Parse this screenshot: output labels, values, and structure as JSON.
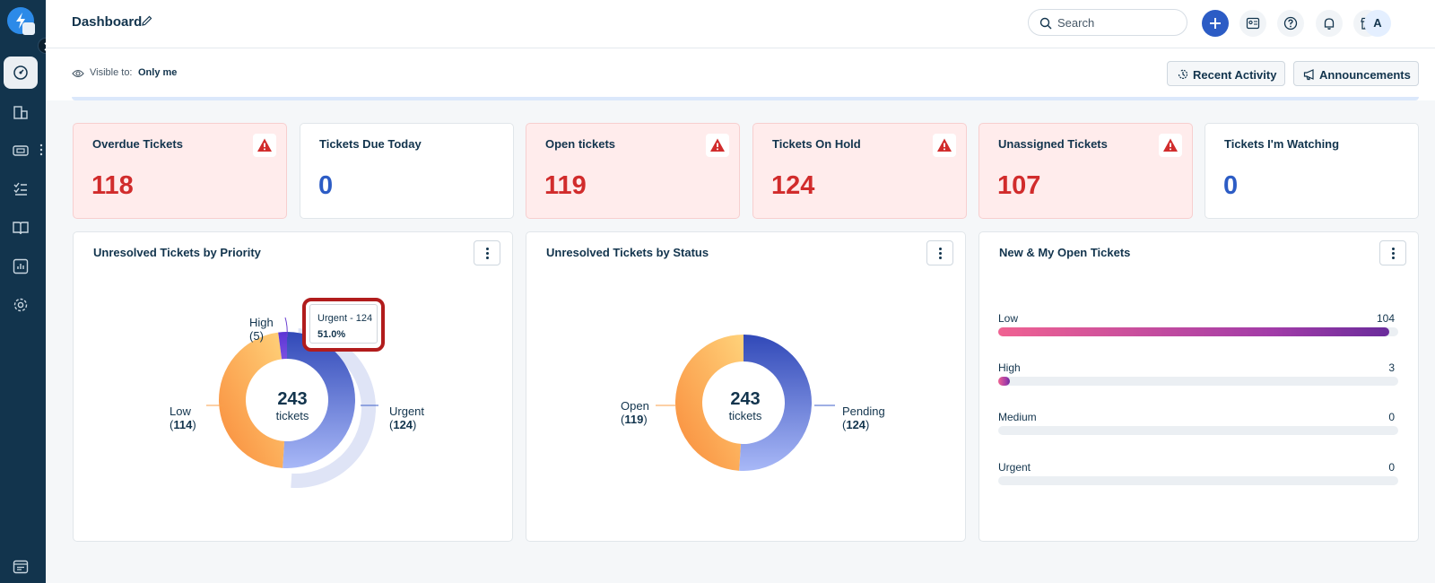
{
  "header": {
    "title": "Dashboard",
    "search_placeholder": "Search",
    "avatar_initial": "A"
  },
  "subbar": {
    "visible_label": "Visible to:",
    "visible_value": "Only me",
    "recent_activity": "Recent Activity",
    "announcements": "Announcements"
  },
  "stats": [
    {
      "label": "Overdue Tickets",
      "value": "118",
      "alert": true
    },
    {
      "label": "Tickets Due Today",
      "value": "0",
      "alert": false
    },
    {
      "label": "Open tickets",
      "value": "119",
      "alert": true
    },
    {
      "label": "Tickets On Hold",
      "value": "124",
      "alert": true
    },
    {
      "label": "Unassigned Tickets",
      "value": "107",
      "alert": true
    },
    {
      "label": "Tickets I'm Watching",
      "value": "0",
      "alert": false
    }
  ],
  "priority_chart": {
    "title": "Unresolved Tickets by Priority",
    "center_value": "243",
    "center_label": "tickets",
    "labels": {
      "high": "High",
      "high_count": "5",
      "low": "Low",
      "low_count": "114",
      "urgent": "Urgent",
      "urgent_count": "124"
    },
    "tooltip_line1": "Urgent - 124",
    "tooltip_line2": "51.0%"
  },
  "status_chart": {
    "title": "Unresolved Tickets by Status",
    "center_value": "243",
    "center_label": "tickets",
    "labels": {
      "open": "Open",
      "open_count": "119",
      "pending": "Pending",
      "pending_count": "124"
    }
  },
  "open_tickets": {
    "title": "New & My Open Tickets",
    "rows": [
      {
        "label": "Low",
        "count": "104"
      },
      {
        "label": "High",
        "count": "3"
      },
      {
        "label": "Medium",
        "count": "0"
      },
      {
        "label": "Urgent",
        "count": "0"
      }
    ]
  },
  "chart_data": [
    {
      "type": "pie",
      "title": "Unresolved Tickets by Priority",
      "categories": [
        "Urgent",
        "Low",
        "High"
      ],
      "values": [
        124,
        114,
        5
      ],
      "total": 243,
      "colors": [
        "#3f5fc8",
        "#f9a14b",
        "#6a3fd1"
      ]
    },
    {
      "type": "pie",
      "title": "Unresolved Tickets by Status",
      "categories": [
        "Pending",
        "Open"
      ],
      "values": [
        124,
        119
      ],
      "total": 243,
      "colors": [
        "#3f5fc8",
        "#f9a14b"
      ]
    },
    {
      "type": "bar",
      "title": "New & My Open Tickets",
      "categories": [
        "Low",
        "High",
        "Medium",
        "Urgent"
      ],
      "values": [
        104,
        3,
        0,
        0
      ],
      "max": 104
    }
  ],
  "colors": {
    "sidebar": "#12344d",
    "accent": "#2c5cc5",
    "alert_red": "#d12c2c",
    "alert_bg": "#ffecec",
    "highlight": "#b11c1c"
  },
  "icons": {
    "sidebar": [
      "logo-icon",
      "dashboard-icon",
      "companies-icon",
      "tickets-icon",
      "tasks-icon",
      "knowledge-base-icon",
      "reports-icon",
      "settings-icon",
      "app-switcher-icon"
    ]
  }
}
